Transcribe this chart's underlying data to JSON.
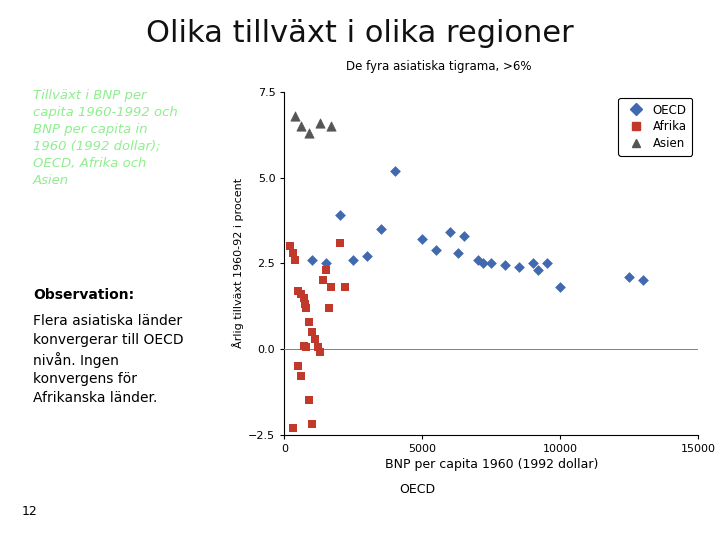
{
  "title": "Olika tillväxt i olika regioner",
  "title_fontsize": 22,
  "title_color": "#111111",
  "dark_line_color": "#1a4a1a",
  "annotation_text": "De fyra asiatiska tigrama, >6%",
  "xlabel": "BNP per capita 1960 (1992 dollar)",
  "ylabel": "Årlig tillväxt 1960-92 i procent",
  "bottom_label": "OECD",
  "page_num": "12",
  "xlim": [
    0,
    15000
  ],
  "ylim": [
    -2.5,
    7.5
  ],
  "xticks": [
    0,
    5000,
    10000,
    15000
  ],
  "yticks": [
    -2.5,
    0.0,
    2.5,
    5.0,
    7.5
  ],
  "legend_labels": [
    "OECD",
    "Afrika",
    "Asien"
  ],
  "legend_colors": [
    "#4169b0",
    "#c0392b",
    "#555555"
  ],
  "left_box_bg": "#1a5c1a",
  "left_box_text": "Tillväxt i BNP per\ncapita 1960-1992 och\nBNP per capita in\n1960 (1992 dollar);\nOECD, Afrika och\nAsien",
  "left_box_text_color": "#90ee90",
  "obs_box_bg": "#c8eef8",
  "obs_title": "Observation:",
  "obs_body": "Flera asiatiska länder\nkonvergerar till OECD\nnivån. Ingen\nkonvergens för\nAfrikanska länder.",
  "oecd_x": [
    1000,
    1500,
    2000,
    2500,
    3000,
    3500,
    4000,
    5000,
    5500,
    6000,
    6300,
    6500,
    7000,
    7200,
    7500,
    8000,
    8500,
    9000,
    9200,
    9500,
    10000,
    12500,
    13000
  ],
  "oecd_y": [
    2.6,
    2.5,
    3.9,
    2.6,
    2.7,
    3.5,
    5.2,
    3.2,
    2.9,
    3.4,
    2.8,
    3.3,
    2.6,
    2.5,
    2.5,
    2.45,
    2.4,
    2.5,
    2.3,
    2.5,
    1.8,
    2.1,
    2.0
  ],
  "africa_x": [
    200,
    300,
    400,
    500,
    600,
    700,
    750,
    800,
    900,
    1000,
    1100,
    1200,
    1300,
    1400,
    1500,
    1700,
    2000,
    2200,
    500,
    600,
    700,
    800,
    900,
    1000,
    300,
    1600
  ],
  "africa_y": [
    3.0,
    2.8,
    2.6,
    1.7,
    1.6,
    1.5,
    1.3,
    1.2,
    0.8,
    0.5,
    0.3,
    0.05,
    -0.1,
    2.0,
    2.3,
    1.8,
    3.1,
    1.8,
    -0.5,
    -0.8,
    0.1,
    0.05,
    -1.5,
    -2.2,
    -2.3,
    1.2
  ],
  "asia_x": [
    400,
    600,
    900,
    1300,
    1700
  ],
  "asia_y": [
    6.8,
    6.5,
    6.3,
    6.6,
    6.5
  ]
}
